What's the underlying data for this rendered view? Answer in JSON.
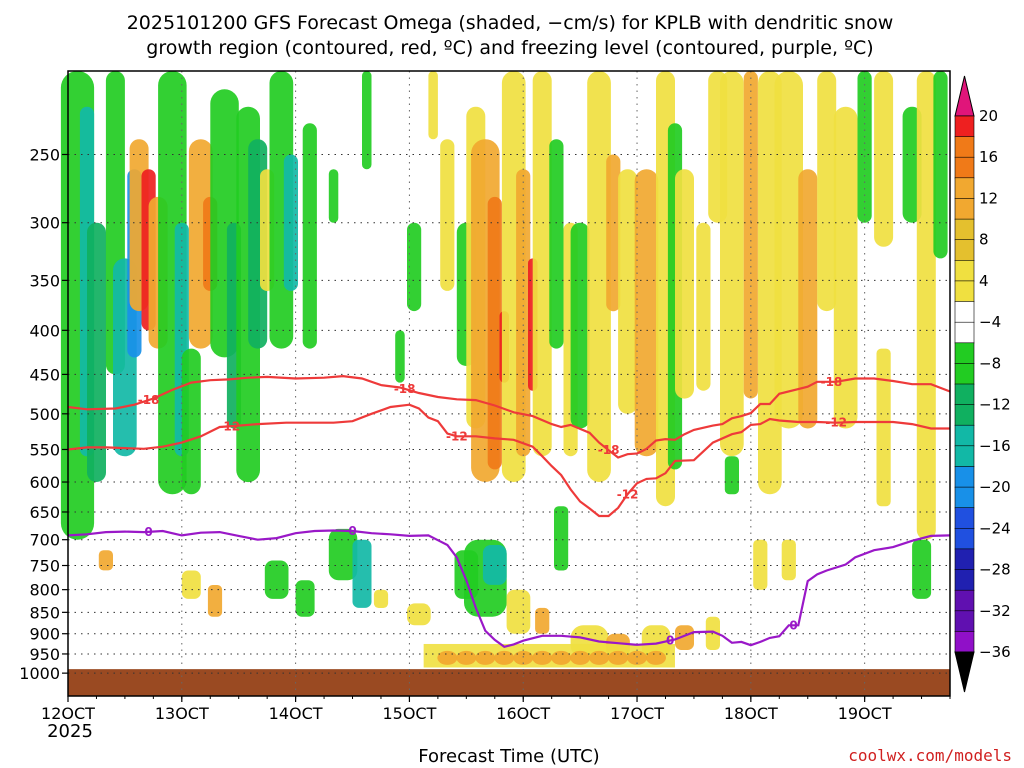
{
  "title": {
    "line1": "2025101200 GFS Forecast Omega (shaded, −cm/s) for KPLB with dendritic snow",
    "line2": "growth region (contoured, red, ºC) and freezing level (contoured, purple, ºC)"
  },
  "credit": "coolwx.com/models",
  "chart_data": {
    "type": "heatmap",
    "title": "2025101200 GFS Forecast Omega (shaded, −cm/s) for KPLB with dendritic snow growth region (contoured, red, ºC) and freezing level (contoured, purple, ºC)",
    "xlabel": "Forecast Time (UTC)",
    "ylabel": "",
    "x_ticks": [
      "12OCT",
      "13OCT",
      "14OCT",
      "15OCT",
      "16OCT",
      "17OCT",
      "18OCT",
      "19OCT"
    ],
    "x_year": "2025",
    "y_ticks": [
      250,
      300,
      350,
      400,
      450,
      500,
      550,
      600,
      650,
      700,
      750,
      800,
      850,
      900,
      950,
      1000
    ],
    "xlim": [
      0,
      186
    ],
    "ylim": [
      1000,
      200
    ],
    "grid": true,
    "colorbar": {
      "labels": [
        20,
        16,
        12,
        8,
        4,
        -4,
        -8,
        -12,
        -16,
        -20,
        -24,
        -28,
        -32,
        -36
      ],
      "colors": [
        "#e0157a",
        "#ee2020",
        "#f07a18",
        "#f1a830",
        "#e4c02e",
        "#f0e040",
        "#ffffff",
        "#22cc22",
        "#10b060",
        "#12b8a6",
        "#1890e8",
        "#2050e0",
        "#2020b0",
        "#6010b0",
        "#9010c8",
        "#a8a8a8",
        "#000000"
      ]
    },
    "contours": [
      {
        "name": "-18",
        "color": "#ee3a3a",
        "labels": [
          {
            "text": "-18",
            "x": 17
          },
          {
            "text": "-18",
            "x": 71
          },
          {
            "text": "-18",
            "x": 114
          },
          {
            "text": "-18",
            "x": 161
          }
        ],
        "points": [
          [
            0,
            491
          ],
          [
            4,
            494
          ],
          [
            10,
            493
          ],
          [
            14,
            488
          ],
          [
            18,
            480
          ],
          [
            22,
            469
          ],
          [
            26,
            460
          ],
          [
            30,
            457
          ],
          [
            34,
            456
          ],
          [
            38,
            454
          ],
          [
            42,
            453
          ],
          [
            48,
            455
          ],
          [
            54,
            454
          ],
          [
            58,
            452
          ],
          [
            62,
            455
          ],
          [
            66,
            463
          ],
          [
            70,
            466
          ],
          [
            74,
            473
          ],
          [
            78,
            478
          ],
          [
            82,
            481
          ],
          [
            86,
            482
          ],
          [
            90,
            489
          ],
          [
            94,
            498
          ],
          [
            98,
            503
          ],
          [
            102,
            514
          ],
          [
            104,
            518
          ],
          [
            106,
            515
          ],
          [
            110,
            526
          ],
          [
            112,
            540
          ],
          [
            114,
            551
          ],
          [
            116,
            562
          ],
          [
            118,
            557
          ],
          [
            120,
            556
          ],
          [
            122,
            549
          ],
          [
            124,
            537
          ],
          [
            126,
            535
          ],
          [
            128,
            536
          ],
          [
            130,
            528
          ],
          [
            132,
            522
          ],
          [
            136,
            516
          ],
          [
            138,
            514
          ],
          [
            140,
            506
          ],
          [
            142,
            503
          ],
          [
            144,
            499
          ],
          [
            146,
            487
          ],
          [
            148,
            487
          ],
          [
            150,
            474
          ],
          [
            154,
            468
          ],
          [
            156,
            465
          ],
          [
            158,
            459
          ],
          [
            162,
            459
          ],
          [
            166,
            455
          ],
          [
            170,
            455
          ],
          [
            174,
            458
          ],
          [
            176,
            460
          ],
          [
            178,
            462
          ],
          [
            182,
            462
          ],
          [
            186,
            471
          ]
        ]
      },
      {
        "name": "-12",
        "color": "#ee3a3a",
        "labels": [
          {
            "text": "-12",
            "x": 34
          },
          {
            "text": "-12",
            "x": 82
          },
          {
            "text": "-12",
            "x": 118
          },
          {
            "text": "-12",
            "x": 162
          }
        ],
        "points": [
          [
            0,
            550
          ],
          [
            4,
            547
          ],
          [
            8,
            547
          ],
          [
            12,
            548
          ],
          [
            16,
            549
          ],
          [
            20,
            546
          ],
          [
            24,
            540
          ],
          [
            28,
            531
          ],
          [
            32,
            518
          ],
          [
            36,
            516
          ],
          [
            40,
            514
          ],
          [
            46,
            512
          ],
          [
            52,
            512
          ],
          [
            56,
            512
          ],
          [
            60,
            510
          ],
          [
            64,
            500
          ],
          [
            68,
            491
          ],
          [
            72,
            488
          ],
          [
            74,
            493
          ],
          [
            76,
            505
          ],
          [
            78,
            510
          ],
          [
            80,
            527
          ],
          [
            82,
            531
          ],
          [
            86,
            531
          ],
          [
            90,
            534
          ],
          [
            94,
            536
          ],
          [
            98,
            546
          ],
          [
            100,
            560
          ],
          [
            102,
            575
          ],
          [
            104,
            589
          ],
          [
            106,
            612
          ],
          [
            108,
            632
          ],
          [
            110,
            644
          ],
          [
            112,
            657
          ],
          [
            114,
            657
          ],
          [
            116,
            643
          ],
          [
            118,
            620
          ],
          [
            120,
            602
          ],
          [
            122,
            595
          ],
          [
            124,
            594
          ],
          [
            126,
            586
          ],
          [
            128,
            567
          ],
          [
            132,
            566
          ],
          [
            136,
            540
          ],
          [
            140,
            528
          ],
          [
            142,
            525
          ],
          [
            144,
            515
          ],
          [
            146,
            514
          ],
          [
            148,
            507
          ],
          [
            150,
            509
          ],
          [
            154,
            511
          ],
          [
            158,
            511
          ],
          [
            162,
            512
          ],
          [
            166,
            511
          ],
          [
            170,
            511
          ],
          [
            174,
            511
          ],
          [
            178,
            514
          ],
          [
            182,
            520
          ],
          [
            186,
            520
          ]
        ]
      },
      {
        "name": "0",
        "color": "#9a18c8",
        "labels": [
          {
            "text": "0",
            "x": 17
          },
          {
            "text": "0",
            "x": 60
          },
          {
            "text": "0",
            "x": 127
          },
          {
            "text": "0",
            "x": 153
          }
        ],
        "points": [
          [
            0,
            692
          ],
          [
            4,
            690
          ],
          [
            8,
            686
          ],
          [
            12,
            685
          ],
          [
            16,
            686
          ],
          [
            20,
            684
          ],
          [
            24,
            692
          ],
          [
            28,
            687
          ],
          [
            32,
            686
          ],
          [
            36,
            693
          ],
          [
            40,
            700
          ],
          [
            44,
            697
          ],
          [
            48,
            688
          ],
          [
            52,
            684
          ],
          [
            56,
            683
          ],
          [
            60,
            684
          ],
          [
            64,
            688
          ],
          [
            68,
            690
          ],
          [
            72,
            693
          ],
          [
            76,
            692
          ],
          [
            78,
            701
          ],
          [
            80,
            710
          ],
          [
            82,
            734
          ],
          [
            84,
            780
          ],
          [
            86,
            840
          ],
          [
            88,
            893
          ],
          [
            90,
            915
          ],
          [
            92,
            932
          ],
          [
            94,
            926
          ],
          [
            96,
            917
          ],
          [
            100,
            905
          ],
          [
            104,
            905
          ],
          [
            108,
            909
          ],
          [
            112,
            919
          ],
          [
            116,
            923
          ],
          [
            120,
            927
          ],
          [
            124,
            924
          ],
          [
            128,
            914
          ],
          [
            132,
            896
          ],
          [
            136,
            895
          ],
          [
            138,
            905
          ],
          [
            140,
            922
          ],
          [
            142,
            920
          ],
          [
            144,
            928
          ],
          [
            146,
            920
          ],
          [
            148,
            910
          ],
          [
            150,
            906
          ],
          [
            152,
            880
          ],
          [
            154,
            880
          ],
          [
            156,
            782
          ],
          [
            158,
            768
          ],
          [
            160,
            760
          ],
          [
            164,
            748
          ],
          [
            166,
            734
          ],
          [
            170,
            720
          ],
          [
            174,
            714
          ],
          [
            178,
            702
          ],
          [
            182,
            693
          ],
          [
            186,
            692
          ]
        ]
      }
    ]
  }
}
